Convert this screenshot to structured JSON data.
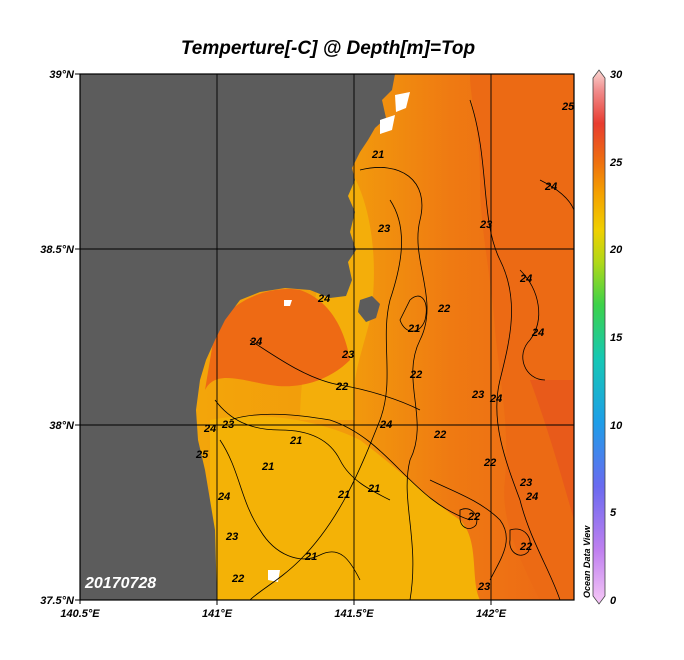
{
  "title": "Temperture[-C] @ Depth[m]=Top",
  "date_stamp": "20170728",
  "credit": "Ocean Data View",
  "colorbar": {
    "ticks": [
      "30",
      "25",
      "20",
      "15",
      "10",
      "5",
      "0"
    ]
  },
  "axes": {
    "lon_ticks": [
      "140.5°E",
      "141°E",
      "141.5°E",
      "142°E"
    ],
    "lat_ticks": [
      "39°N",
      "38.5°N",
      "38°N",
      "37.5°N"
    ]
  },
  "contour_labels": [
    {
      "text": "21"
    },
    {
      "text": "23"
    },
    {
      "text": "24"
    },
    {
      "text": "24"
    },
    {
      "text": "25"
    },
    {
      "text": "23"
    },
    {
      "text": "24"
    },
    {
      "text": "24"
    },
    {
      "text": "22"
    },
    {
      "text": "21"
    },
    {
      "text": "23"
    },
    {
      "text": "24"
    },
    {
      "text": "22"
    },
    {
      "text": "22"
    },
    {
      "text": "23"
    },
    {
      "text": "24"
    },
    {
      "text": "24"
    },
    {
      "text": "23"
    },
    {
      "text": "21"
    },
    {
      "text": "21"
    },
    {
      "text": "24"
    },
    {
      "text": "22"
    },
    {
      "text": "22"
    },
    {
      "text": "23"
    },
    {
      "text": "21"
    },
    {
      "text": "21"
    },
    {
      "text": "22"
    },
    {
      "text": "21"
    },
    {
      "text": "22"
    },
    {
      "text": "23"
    },
    {
      "text": "22"
    },
    {
      "text": "23"
    },
    {
      "text": "24"
    },
    {
      "text": "25"
    },
    {
      "text": "24"
    }
  ],
  "colors": {
    "land": "#5c5c5c",
    "frame": "#000000",
    "warm_sea": "#ee6a12",
    "mid_sea": "#f39410",
    "cool_sea": "#f4b406"
  }
}
